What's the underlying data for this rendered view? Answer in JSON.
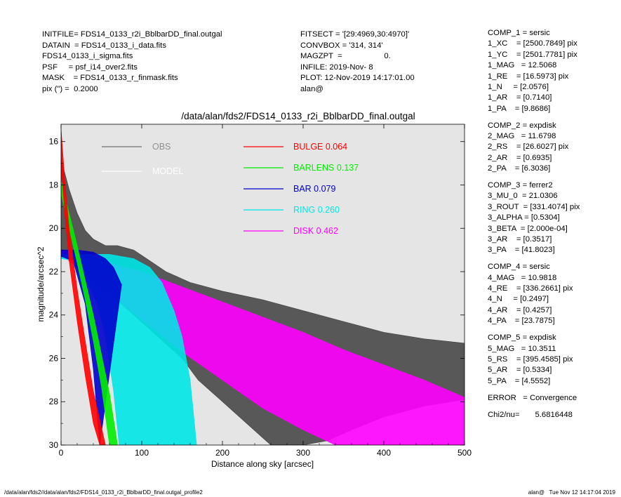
{
  "header": {
    "left": [
      "INITFILE= FDS14_0133_r2i_BblbarDD_final.outgal",
      "DATAIN  = FDS14_0133_i_data.fits",
      "FDS14_0133_i_sigma.fits",
      "PSF     = psf_i14_over2.fits",
      "MASK    = FDS14_0133_r_finmask.fits",
      "pix (\") =  0.2000"
    ],
    "middle": [
      "FITSECT = '[29:4969,30:4970]'",
      "CONVBOX = '314, 314'",
      "MAGZPT  =                   0.",
      "INFILE: 2019-Nov- 8",
      "PLOT: 12-Nov-2019 14:17:01.00",
      "alan@"
    ]
  },
  "components": [
    [
      "COMP_1 = sersic",
      "1_XC    = [2500.7849] pix",
      "1_YC    = [2501.7781] pix",
      "1_MAG   = 12.5068",
      "1_RE    = [16.5973] pix",
      "1_N     = [2.0576]",
      "1_AR    = [0.7140]",
      "1_PA    = [9.8686]"
    ],
    [
      "COMP_2 = expdisk",
      "2_MAG   = 11.6798",
      "2_RS    = [26.6027] pix",
      "2_AR    = [0.6935]",
      "2_PA    = [6.3036]"
    ],
    [
      "COMP_3 = ferrer2",
      "3_MU_0  = 21.0306",
      "3_ROUT  = [331.4074] pix",
      "3_ALPHA = [0.5304]",
      "3_BETA  = [2.000e-04]",
      "3_AR    = [0.3517]",
      "3_PA    = [41.8023]"
    ],
    [
      "COMP_4 = sersic",
      "4_MAG   = 10.9818",
      "4_RE    = [336.2661] pix",
      "4_N     = [0.2497]",
      "4_AR    = [0.4257]",
      "4_PA    = [23.7875]"
    ],
    [
      "COMP_5 = expdisk",
      "5_MAG   = 10.3511",
      "5_RS    = [395.4585] pix",
      "5_AR    = [0.5334]",
      "5_PA    = [4.5552]"
    ],
    [
      "ERROR   = Convergence"
    ],
    [
      "Chi2/nu=       5.6816448"
    ]
  ],
  "footer": {
    "left": "/data/alan/fds2//data/alan/fds2/FDS14_0133_r2i_BblbarDD_final.outgal_profile2",
    "right": "alan@   Tue Nov 12 14:17:04 2019"
  },
  "colors": {
    "plot_bg": "#e5e5e5",
    "obs": "#404040",
    "bulge": "#ff0000",
    "barlens": "#00ee00",
    "bar": "#0000cc",
    "ring": "#00e5e5",
    "disk": "#ff00ff"
  },
  "chart_data": {
    "type": "scatter",
    "title": "/data/alan/fds2/FDS14_0133_r2i_BblbarDD_final.outgal",
    "xlabel": "Distance along sky [arcsec]",
    "ylabel": "magnitude/arcsec^2",
    "xlim": [
      0,
      500
    ],
    "ylim": [
      30,
      15.2
    ],
    "y_inverted": true,
    "xticks": [
      0,
      100,
      200,
      300,
      400,
      500
    ],
    "yticks": [
      16,
      18,
      20,
      22,
      24,
      26,
      28,
      30
    ],
    "grid": false,
    "legend": [
      {
        "key": "obs",
        "label": "OBS",
        "value": ""
      },
      {
        "key": "model",
        "label": "MODEL",
        "value": ""
      },
      {
        "key": "bulge",
        "label": "BULGE",
        "value": "0.064"
      },
      {
        "key": "barlens",
        "label": "BARLENS",
        "value": "0.137"
      },
      {
        "key": "bar",
        "label": "BAR",
        "value": "0.079"
      },
      {
        "key": "ring",
        "label": "RING",
        "value": "0.260"
      },
      {
        "key": "disk",
        "label": "DISK",
        "value": "0.462"
      }
    ],
    "series": [
      {
        "key": "obs",
        "name": "OBS",
        "upper": [
          [
            0,
            16.8
          ],
          [
            10,
            18.2
          ],
          [
            20,
            19.3
          ],
          [
            30,
            20.1
          ],
          [
            40,
            20.5
          ],
          [
            55,
            20.8
          ],
          [
            70,
            20.8
          ],
          [
            90,
            21.0
          ],
          [
            110,
            21.5
          ],
          [
            130,
            22.0
          ],
          [
            160,
            22.5
          ],
          [
            200,
            22.9
          ],
          [
            250,
            23.3
          ],
          [
            300,
            23.8
          ],
          [
            350,
            24.3
          ],
          [
            400,
            24.8
          ],
          [
            450,
            25.1
          ],
          [
            500,
            25.3
          ]
        ],
        "lower": [
          [
            0,
            21.0
          ],
          [
            30,
            22.0
          ],
          [
            60,
            23.0
          ],
          [
            90,
            24.0
          ],
          [
            120,
            25.0
          ],
          [
            150,
            26.0
          ],
          [
            170,
            27.0
          ],
          [
            200,
            28.0
          ],
          [
            230,
            29.0
          ],
          [
            260,
            30.0
          ],
          [
            300,
            30.0
          ],
          [
            330,
            29.8
          ],
          [
            360,
            29.3
          ],
          [
            400,
            28.7
          ],
          [
            450,
            28.2
          ],
          [
            500,
            27.9
          ]
        ]
      },
      {
        "key": "bulge",
        "name": "BULGE",
        "upper": [
          [
            0,
            15.4
          ],
          [
            5,
            18.0
          ],
          [
            10,
            20.0
          ],
          [
            20,
            22.8
          ],
          [
            30,
            25.2
          ],
          [
            40,
            27.5
          ],
          [
            55,
            30.0
          ]
        ],
        "lower": [
          [
            0,
            17.0
          ],
          [
            5,
            19.5
          ],
          [
            10,
            21.5
          ],
          [
            20,
            24.3
          ],
          [
            30,
            26.8
          ],
          [
            40,
            29.0
          ],
          [
            48,
            30.0
          ]
        ]
      },
      {
        "key": "barlens",
        "name": "BARLENS",
        "upper": [
          [
            0,
            17.8
          ],
          [
            10,
            19.3
          ],
          [
            20,
            20.8
          ],
          [
            30,
            22.4
          ],
          [
            40,
            24.0
          ],
          [
            50,
            25.8
          ],
          [
            60,
            27.6
          ],
          [
            70,
            30.0
          ]
        ],
        "lower": [
          [
            0,
            18.4
          ],
          [
            10,
            20.0
          ],
          [
            20,
            21.6
          ],
          [
            30,
            23.3
          ],
          [
            40,
            25.2
          ],
          [
            50,
            27.3
          ],
          [
            60,
            30.0
          ]
        ]
      },
      {
        "key": "bar",
        "name": "BAR",
        "upper": [
          [
            0,
            21.0
          ],
          [
            20,
            21.0
          ],
          [
            40,
            21.1
          ],
          [
            55,
            21.4
          ],
          [
            65,
            21.8
          ],
          [
            75,
            22.6
          ]
        ],
        "lower": [
          [
            0,
            21.3
          ],
          [
            15,
            21.5
          ],
          [
            30,
            23.5
          ],
          [
            40,
            26.5
          ],
          [
            48,
            30.0
          ]
        ]
      },
      {
        "key": "ring",
        "name": "RING",
        "upper": [
          [
            0,
            21.2
          ],
          [
            30,
            21.2
          ],
          [
            60,
            21.2
          ],
          [
            90,
            21.4
          ],
          [
            110,
            21.8
          ],
          [
            125,
            22.5
          ],
          [
            140,
            23.8
          ],
          [
            150,
            25.0
          ],
          [
            160,
            27.0
          ],
          [
            168,
            30.0
          ]
        ],
        "lower": [
          [
            0,
            21.4
          ],
          [
            15,
            21.5
          ],
          [
            30,
            22.2
          ],
          [
            45,
            23.5
          ],
          [
            55,
            25.0
          ],
          [
            65,
            27.5
          ],
          [
            72,
            30.0
          ]
        ]
      },
      {
        "key": "disk",
        "name": "DISK",
        "upper": [
          [
            0,
            21.0
          ],
          [
            50,
            21.5
          ],
          [
            100,
            22.0
          ],
          [
            150,
            22.7
          ],
          [
            200,
            23.4
          ],
          [
            250,
            24.1
          ],
          [
            300,
            24.8
          ],
          [
            350,
            25.6
          ],
          [
            400,
            26.3
          ],
          [
            450,
            27.0
          ],
          [
            500,
            27.8
          ]
        ],
        "lower": [
          [
            0,
            21.2
          ],
          [
            50,
            22.7
          ],
          [
            100,
            24.2
          ],
          [
            150,
            25.7
          ],
          [
            200,
            27.0
          ],
          [
            250,
            28.3
          ],
          [
            300,
            29.3
          ],
          [
            340,
            30.0
          ],
          [
            500,
            30.0
          ]
        ]
      }
    ]
  }
}
